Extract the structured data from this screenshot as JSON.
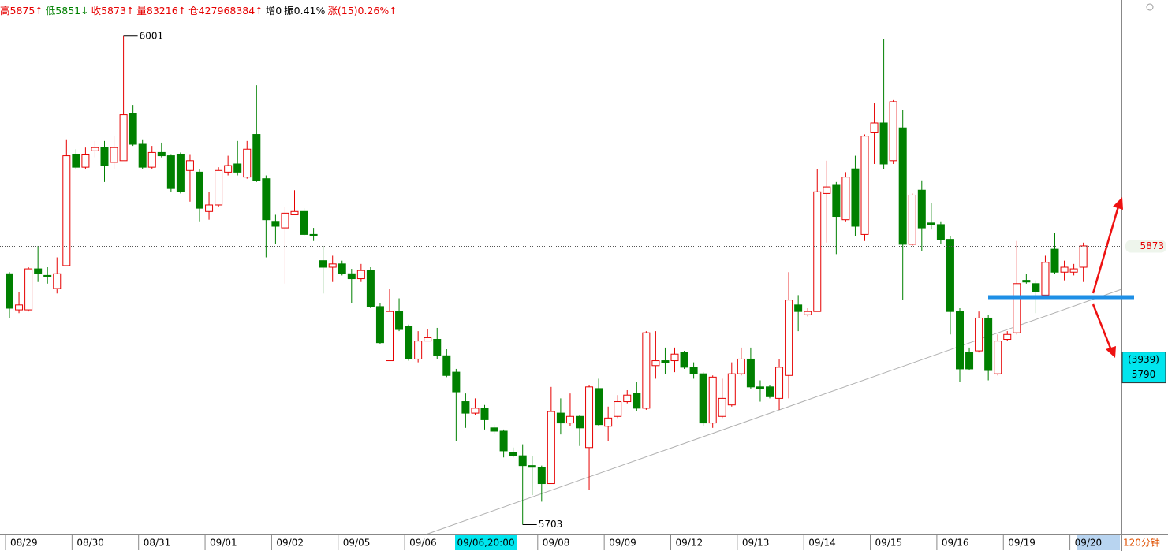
{
  "chart_data": {
    "type": "candlestick",
    "header": [
      "高5875↑",
      "低5851↓",
      "收5873↑",
      "量83216↑",
      "仓427968384↑",
      "增0",
      "振0.41%",
      "涨(15)0.26%↑"
    ],
    "categories": [
      "08/29",
      null,
      null,
      null,
      null,
      null,
      null,
      "08/30",
      null,
      null,
      null,
      null,
      null,
      null,
      "08/31",
      null,
      null,
      null,
      null,
      null,
      null,
      "09/01",
      null,
      null,
      null,
      null,
      null,
      null,
      "09/02",
      null,
      null,
      null,
      null,
      null,
      null,
      "09/05",
      null,
      null,
      null,
      null,
      null,
      null,
      "09/06",
      null,
      null,
      null,
      null,
      null,
      null,
      null,
      null,
      null,
      null,
      null,
      null,
      null,
      "09/08",
      null,
      null,
      null,
      null,
      null,
      null,
      "09/09",
      null,
      null,
      null,
      null,
      null,
      null,
      "09/12",
      null,
      null,
      null,
      null,
      null,
      null,
      "09/13",
      null,
      null,
      null,
      null,
      null,
      null,
      "09/14",
      null,
      null,
      null,
      null,
      null,
      null,
      "09/15",
      null,
      null,
      null,
      null,
      null,
      null,
      "09/16",
      null,
      null,
      null,
      null,
      null,
      null,
      "09/19",
      null,
      null,
      null,
      null,
      null,
      null,
      "09/20",
      null
    ],
    "ohlc": [
      [
        5856,
        5857,
        5829,
        5835
      ],
      [
        5834,
        5845,
        5832,
        5837
      ],
      [
        5834,
        5860,
        5833,
        5859
      ],
      [
        5859,
        5873,
        5851,
        5856
      ],
      [
        5855,
        5860,
        5850,
        5854
      ],
      [
        5847,
        5866,
        5844,
        5856
      ],
      [
        5861,
        5938,
        5861,
        5928
      ],
      [
        5929,
        5932,
        5920,
        5921
      ],
      [
        5921,
        5933,
        5920,
        5929
      ],
      [
        5931,
        5937,
        5927,
        5933
      ],
      [
        5933,
        5937,
        5912,
        5922
      ],
      [
        5924,
        5940,
        5920,
        5933
      ],
      [
        5925,
        6001,
        5925,
        5953
      ],
      [
        5954,
        5959,
        5934,
        5935
      ],
      [
        5935,
        5938,
        5920,
        5921
      ],
      [
        5921,
        5934,
        5920,
        5930
      ],
      [
        5930,
        5936,
        5927,
        5928
      ],
      [
        5928,
        5929,
        5906,
        5908
      ],
      [
        5929,
        5930,
        5905,
        5906
      ],
      [
        5919,
        5929,
        5900,
        5925
      ],
      [
        5918,
        5920,
        5888,
        5896
      ],
      [
        5894,
        5906,
        5889,
        5898
      ],
      [
        5898,
        5921,
        5897,
        5919
      ],
      [
        5918,
        5928,
        5916,
        5922
      ],
      [
        5923,
        5937,
        5916,
        5918
      ],
      [
        5915,
        5937,
        5914,
        5932
      ],
      [
        5941,
        5971,
        5912,
        5913
      ],
      [
        5914,
        5916,
        5866,
        5889
      ],
      [
        5888,
        5892,
        5874,
        5885
      ],
      [
        5884,
        5897,
        5850,
        5893
      ],
      [
        5892,
        5907,
        5892,
        5894
      ],
      [
        5894,
        5896,
        5879,
        5880
      ],
      [
        5880,
        5884,
        5876,
        5879
      ],
      [
        5864,
        5873,
        5844,
        5860
      ],
      [
        5860,
        5867,
        5851,
        5862
      ],
      [
        5862,
        5864,
        5855,
        5856
      ],
      [
        5856,
        5859,
        5838,
        5853
      ],
      [
        5853,
        5862,
        5851,
        5858
      ],
      [
        5858,
        5860,
        5835,
        5836
      ],
      [
        5836,
        5838,
        5813,
        5814
      ],
      [
        5803,
        5847,
        5803,
        5833
      ],
      [
        5833,
        5841,
        5821,
        5822
      ],
      [
        5824,
        5825,
        5803,
        5804
      ],
      [
        5804,
        5821,
        5802,
        5815
      ],
      [
        5815,
        5822,
        5815,
        5817
      ],
      [
        5816,
        5823,
        5804,
        5806
      ],
      [
        5806,
        5810,
        5793,
        5794
      ],
      [
        5796,
        5798,
        5754,
        5784
      ],
      [
        5778,
        5783,
        5762,
        5771
      ],
      [
        5771,
        5780,
        5770,
        5774
      ],
      [
        5774,
        5776,
        5761,
        5767
      ],
      [
        5762,
        5764,
        5758,
        5760
      ],
      [
        5760,
        5761,
        5744,
        5748
      ],
      [
        5747,
        5750,
        5744,
        5745
      ],
      [
        5745,
        5752,
        5703,
        5739
      ],
      [
        5739,
        5745,
        5721,
        5738
      ],
      [
        5738,
        5739,
        5717,
        5728
      ],
      [
        5728,
        5787,
        5728,
        5772
      ],
      [
        5771,
        5780,
        5758,
        5765
      ],
      [
        5765,
        5783,
        5763,
        5769
      ],
      [
        5769,
        5770,
        5751,
        5762
      ],
      [
        5750,
        5788,
        5724,
        5787
      ],
      [
        5786,
        5792,
        5763,
        5764
      ],
      [
        5763,
        5775,
        5754,
        5768
      ],
      [
        5769,
        5782,
        5768,
        5778
      ],
      [
        5778,
        5785,
        5777,
        5782
      ],
      [
        5783,
        5790,
        5772,
        5774
      ],
      [
        5774,
        5821,
        5773,
        5820
      ],
      [
        5800,
        5821,
        5792,
        5803
      ],
      [
        5803,
        5811,
        5795,
        5802
      ],
      [
        5803,
        5811,
        5796,
        5807
      ],
      [
        5808,
        5809,
        5798,
        5799
      ],
      [
        5799,
        5802,
        5792,
        5795
      ],
      [
        5795,
        5796,
        5763,
        5765
      ],
      [
        5765,
        5794,
        5762,
        5793
      ],
      [
        5769,
        5792,
        5768,
        5780
      ],
      [
        5776,
        5802,
        5775,
        5795
      ],
      [
        5795,
        5811,
        5794,
        5804
      ],
      [
        5804,
        5811,
        5786,
        5787
      ],
      [
        5787,
        5791,
        5778,
        5786
      ],
      [
        5787,
        5788,
        5780,
        5781
      ],
      [
        5780,
        5804,
        5773,
        5799
      ],
      [
        5794,
        5857,
        5780,
        5840
      ],
      [
        5837,
        5843,
        5821,
        5833
      ],
      [
        5831,
        5835,
        5830,
        5833
      ],
      [
        5833,
        5920,
        5833,
        5906
      ],
      [
        5905,
        5925,
        5875,
        5909
      ],
      [
        5910,
        5912,
        5868,
        5891
      ],
      [
        5889,
        5918,
        5888,
        5915
      ],
      [
        5920,
        5928,
        5879,
        5885
      ],
      [
        5880,
        5941,
        5876,
        5940
      ],
      [
        5942,
        5960,
        5923,
        5948
      ],
      [
        5948,
        5999,
        5920,
        5923
      ],
      [
        5925,
        5962,
        5923,
        5961
      ],
      [
        5945,
        5956,
        5840,
        5874
      ],
      [
        5874,
        5905,
        5873,
        5904
      ],
      [
        5907,
        5913,
        5870,
        5884
      ],
      [
        5887,
        5899,
        5883,
        5886
      ],
      [
        5886,
        5888,
        5874,
        5877
      ],
      [
        5877,
        5879,
        5819,
        5833
      ],
      [
        5833,
        5835,
        5790,
        5798
      ],
      [
        5808,
        5811,
        5797,
        5798
      ],
      [
        5809,
        5833,
        5808,
        5829
      ],
      [
        5829,
        5831,
        5791,
        5797
      ],
      [
        5795,
        5819,
        5794,
        5815
      ],
      [
        5816,
        5821,
        5815,
        5819
      ],
      [
        5820,
        5876,
        5819,
        5850
      ],
      [
        5852,
        5856,
        5850,
        5851
      ],
      [
        5850,
        5852,
        5832,
        5845
      ],
      [
        5843,
        5867,
        5843,
        5863
      ],
      [
        5871,
        5881,
        5856,
        5857
      ],
      [
        5857,
        5864,
        5852,
        5860
      ],
      [
        5857,
        5862,
        5855,
        5859
      ],
      [
        5860,
        5875,
        5851,
        5873
      ]
    ],
    "up_color": "#e60000",
    "down_color": "#008000",
    "ylim": [
      5697,
      6023
    ],
    "last_price": 5873,
    "max_label": 6001,
    "min_label": 5703,
    "cursor": {
      "label": "09/06,20:00",
      "count_label": "(3939)",
      "price": 5790
    },
    "period": "120分钟"
  }
}
